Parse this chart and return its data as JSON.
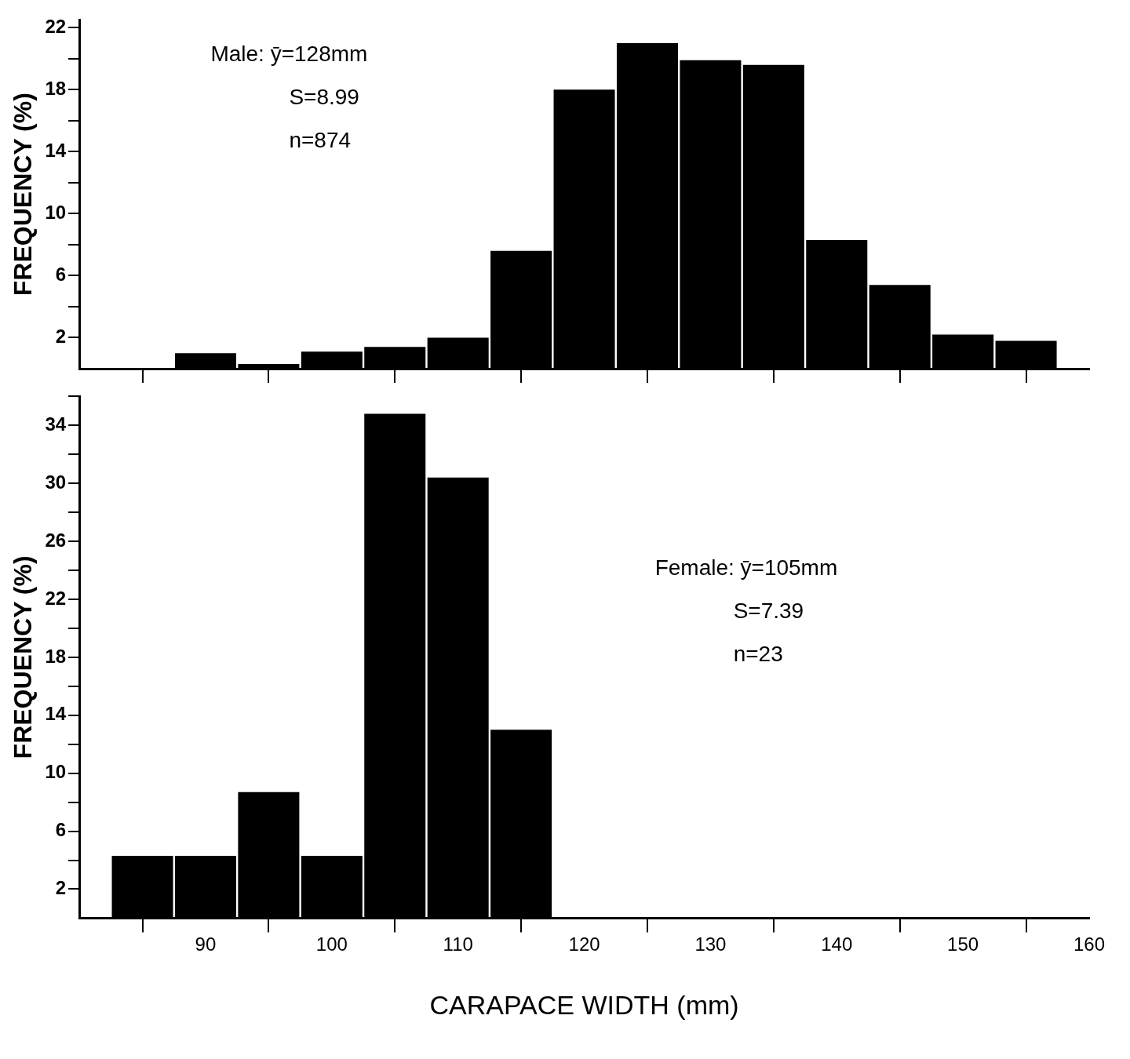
{
  "chart_data": [
    {
      "type": "histogram",
      "ylabel": "FREQUENCY (%)",
      "bins": [
        82.5,
        87.5,
        92.5,
        97.5,
        102.5,
        107.5,
        112.5,
        117.5,
        122.5,
        127.5,
        132.5,
        137.5,
        142.5,
        147.5,
        152.5,
        157.5
      ],
      "values": [
        0,
        1.0,
        0.3,
        1.1,
        1.4,
        2.0,
        7.6,
        18.0,
        21.0,
        19.9,
        19.6,
        8.3,
        5.4,
        2.2,
        1.8
      ],
      "color": "#000000",
      "xlim": [
        80,
        160
      ],
      "xticks": [
        90,
        100,
        110,
        120,
        130,
        140,
        150,
        160
      ],
      "ylim": [
        0,
        22.5
      ],
      "yticks": [
        2,
        {
          "value": 4,
          "label": null
        },
        6,
        {
          "value": 8,
          "label": null
        },
        10,
        {
          "value": 12,
          "label": null
        },
        14,
        {
          "value": 16,
          "label": null
        },
        18,
        {
          "value": 20,
          "label": null
        },
        22
      ],
      "tick_labels": "y",
      "grid": false,
      "legend": false,
      "annotations": [
        "Male: ȳ=128mm",
        "S=8.99",
        "n=874"
      ]
    },
    {
      "type": "histogram",
      "ylabel": "FREQUENCY (%)",
      "xlabel": "CARAPACE WIDTH (mm)",
      "bins": [
        82.5,
        87.5,
        92.5,
        97.5,
        102.5,
        107.5,
        112.5,
        117.5
      ],
      "values": [
        4.3,
        4.3,
        8.7,
        4.3,
        34.8,
        30.4,
        13.0
      ],
      "color": "#000000",
      "xlim": [
        80,
        160
      ],
      "xticks": [
        90,
        100,
        110,
        120,
        130,
        140,
        150,
        160
      ],
      "ylim": [
        0,
        36
      ],
      "yticks": [
        2,
        {
          "value": 4,
          "label": null
        },
        6,
        {
          "value": 8,
          "label": null
        },
        10,
        {
          "value": 12,
          "label": null
        },
        14,
        {
          "value": 16,
          "label": null
        },
        18,
        {
          "value": 20,
          "label": null
        },
        22,
        {
          "value": 24,
          "label": null
        },
        26,
        {
          "value": 28,
          "label": null
        },
        30,
        {
          "value": 32,
          "label": null
        },
        34,
        {
          "value": 36,
          "label": null
        }
      ],
      "grid": false,
      "legend": false,
      "annotations": [
        "Female: ȳ=105mm",
        "S=7.39",
        "n=23"
      ]
    }
  ]
}
